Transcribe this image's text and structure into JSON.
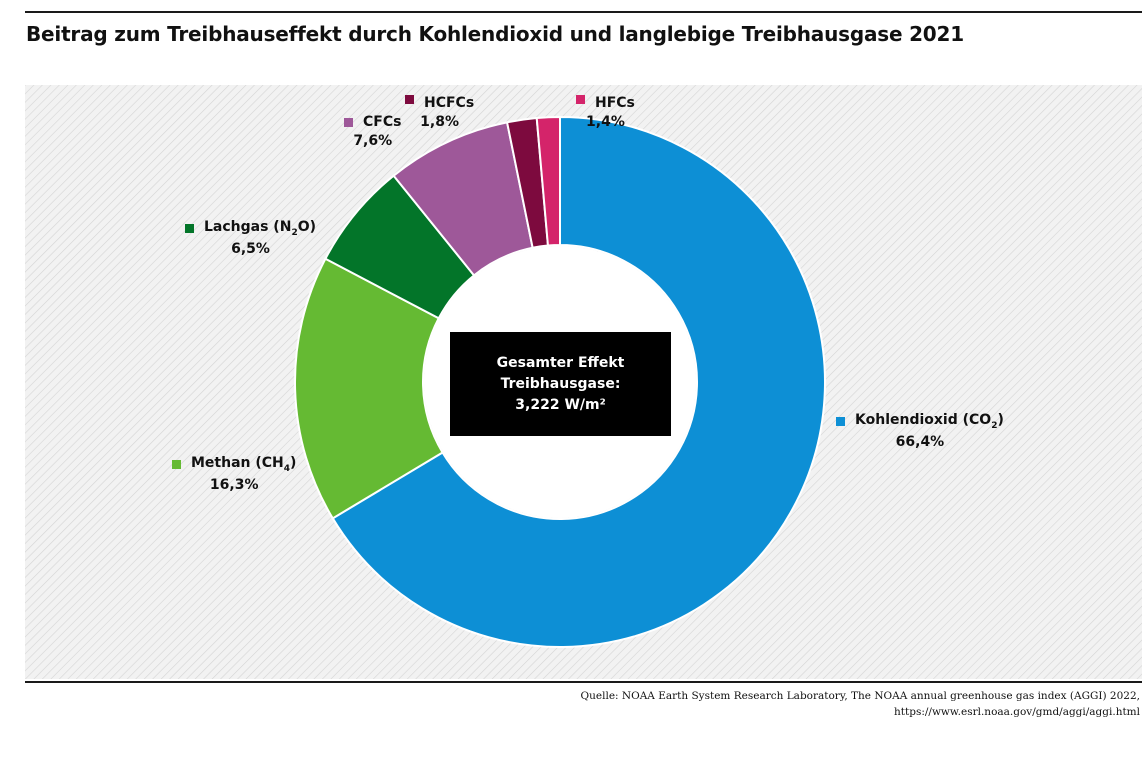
{
  "chart_data": {
    "type": "pie",
    "title": "Beitrag zum Treibhauseffekt durch Kohlendioxid und langlebige Treibhausgase 2021",
    "slices": [
      {
        "label": "Kohlendioxid (CO",
        "sub": "2",
        "label_end": ")",
        "value": 66.4,
        "value_label": "66,4%",
        "color": "#0d8fd5"
      },
      {
        "label": "Methan (CH",
        "sub": "4",
        "label_end": ")",
        "value": 16.3,
        "value_label": "16,3%",
        "color": "#65ba33"
      },
      {
        "label": "Lachgas (N",
        "sub": "2",
        "label_end": "O)",
        "value": 6.5,
        "value_label": "6,5%",
        "color": "#037529"
      },
      {
        "label": "CFCs",
        "sub": "",
        "label_end": "",
        "value": 7.6,
        "value_label": "7,6%",
        "color": "#9e5899"
      },
      {
        "label": "HCFCs",
        "sub": "",
        "label_end": "",
        "value": 1.8,
        "value_label": "1,8%",
        "color": "#7d0a3e"
      },
      {
        "label": "HFCs",
        "sub": "",
        "label_end": "",
        "value": 1.4,
        "value_label": "1,4%",
        "color": "#d4246a"
      }
    ],
    "center_text": [
      "Gesamter Effekt",
      "Treibhausgase:",
      "3,222 W/m²"
    ]
  },
  "source": {
    "line1": "Quelle: NOAA Earth System Research Laboratory, The NOAA annual greenhouse gas index (AGGI) 2022,",
    "line2": "https://www.esrl.noaa.gov/gmd/aggi/aggi.html"
  }
}
